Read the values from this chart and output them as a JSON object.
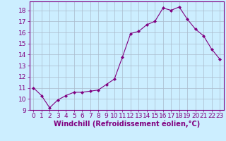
{
  "x": [
    0,
    1,
    2,
    3,
    4,
    5,
    6,
    7,
    8,
    9,
    10,
    11,
    12,
    13,
    14,
    15,
    16,
    17,
    18,
    19,
    20,
    21,
    22,
    23
  ],
  "y": [
    11.0,
    10.3,
    9.2,
    9.9,
    10.3,
    10.6,
    10.6,
    10.7,
    10.8,
    11.3,
    11.8,
    13.8,
    15.9,
    16.1,
    16.7,
    17.0,
    18.2,
    18.0,
    18.3,
    17.2,
    16.3,
    15.7,
    14.5,
    13.6
  ],
  "ylim": [
    9,
    18.8
  ],
  "xlim": [
    -0.5,
    23.5
  ],
  "yticks": [
    9,
    10,
    11,
    12,
    13,
    14,
    15,
    16,
    17,
    18
  ],
  "xticks": [
    0,
    1,
    2,
    3,
    4,
    5,
    6,
    7,
    8,
    9,
    10,
    11,
    12,
    13,
    14,
    15,
    16,
    17,
    18,
    19,
    20,
    21,
    22,
    23
  ],
  "xlabel": "Windchill (Refroidissement éolien,°C)",
  "line_color": "#800080",
  "marker": "D",
  "marker_size": 2.0,
  "bg_color": "#cceeff",
  "grid_color": "#aabbcc",
  "tick_label_fontsize": 6.5,
  "xlabel_fontsize": 7.0
}
